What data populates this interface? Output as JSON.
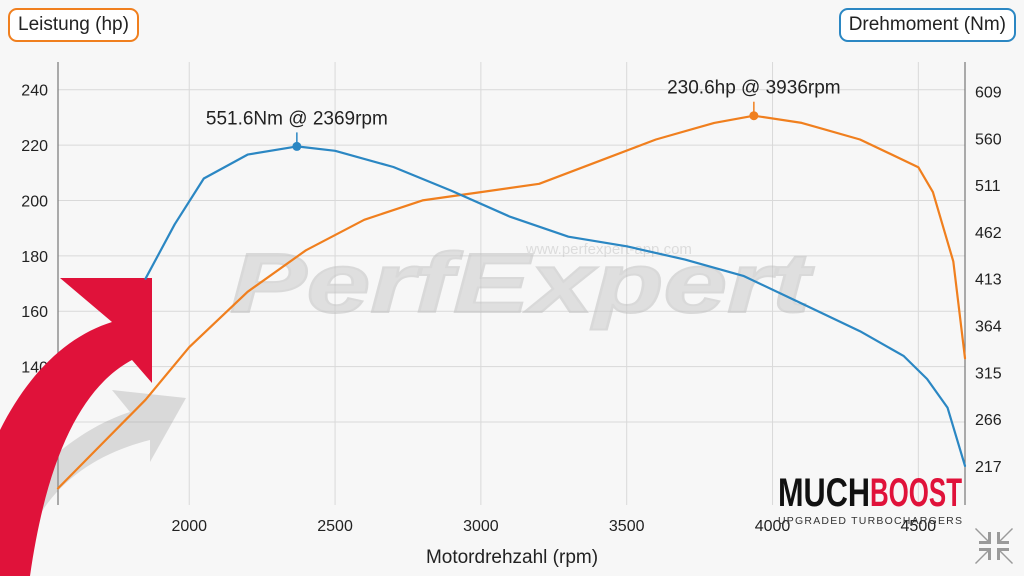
{
  "left_axis_pill": "Leistung (hp)",
  "right_axis_pill": "Drehmoment (Nm)",
  "watermark": {
    "logo_text": "PerfExpert",
    "url_text": "www.perfexpert-app.com"
  },
  "brand": {
    "name_part1": "MUCH",
    "name_part2": "BOOST",
    "tagline": "UPGRADED TURBOCHARGERS"
  },
  "colors": {
    "power": "#f07f1e",
    "torque": "#2b87c3",
    "arrow": "#e0123a",
    "arrow_shadow": "#9a9a9a"
  },
  "icons": {
    "corner": "collapse-arrows-icon"
  },
  "chart_data": {
    "type": "line",
    "xlabel": "Motordrehzahl (rpm)",
    "ylabel_left": "Leistung (hp)",
    "ylabel_right": "Drehmoment (Nm)",
    "xlim": [
      1550,
      4660
    ],
    "ylim_left": [
      90,
      250
    ],
    "ylim_right": [
      176,
      640
    ],
    "x_ticks": [
      2000,
      2500,
      3000,
      3500,
      4000,
      4500
    ],
    "y_ticks_left": [
      120,
      140,
      160,
      180,
      200,
      220,
      240
    ],
    "y_ticks_right": [
      217,
      266,
      315,
      364,
      413,
      462,
      511,
      560,
      609
    ],
    "grid": true,
    "series": [
      {
        "name": "Leistung (hp)",
        "axis": "left",
        "color": "#f07f1e",
        "points": [
          [
            1550,
            96
          ],
          [
            1700,
            112
          ],
          [
            1850,
            128
          ],
          [
            2000,
            147
          ],
          [
            2200,
            167
          ],
          [
            2400,
            182
          ],
          [
            2600,
            193
          ],
          [
            2800,
            200
          ],
          [
            3000,
            203
          ],
          [
            3200,
            206
          ],
          [
            3400,
            214
          ],
          [
            3600,
            222
          ],
          [
            3800,
            228
          ],
          [
            3936,
            230.6
          ],
          [
            4100,
            228
          ],
          [
            4300,
            222
          ],
          [
            4500,
            212
          ],
          [
            4550,
            203
          ],
          [
            4620,
            178
          ],
          [
            4660,
            143
          ]
        ]
      },
      {
        "name": "Drehmoment (Nm)",
        "axis": "right",
        "color": "#2b87c3",
        "points": [
          [
            1850,
            413
          ],
          [
            1950,
            470
          ],
          [
            2050,
            518
          ],
          [
            2200,
            543
          ],
          [
            2369,
            551.6
          ],
          [
            2500,
            547
          ],
          [
            2700,
            530
          ],
          [
            2900,
            505
          ],
          [
            3100,
            478
          ],
          [
            3300,
            457
          ],
          [
            3500,
            447
          ],
          [
            3700,
            433
          ],
          [
            3900,
            416
          ],
          [
            4100,
            387
          ],
          [
            4300,
            358
          ],
          [
            4450,
            332
          ],
          [
            4530,
            308
          ],
          [
            4600,
            278
          ],
          [
            4660,
            217
          ]
        ]
      }
    ],
    "annotations": [
      {
        "series": "Drehmoment (Nm)",
        "x": 2369,
        "y": 551.6,
        "label": "551.6Nm @ 2369rpm"
      },
      {
        "series": "Leistung (hp)",
        "x": 3936,
        "y": 230.6,
        "label": "230.6hp @ 3936rpm"
      }
    ]
  }
}
